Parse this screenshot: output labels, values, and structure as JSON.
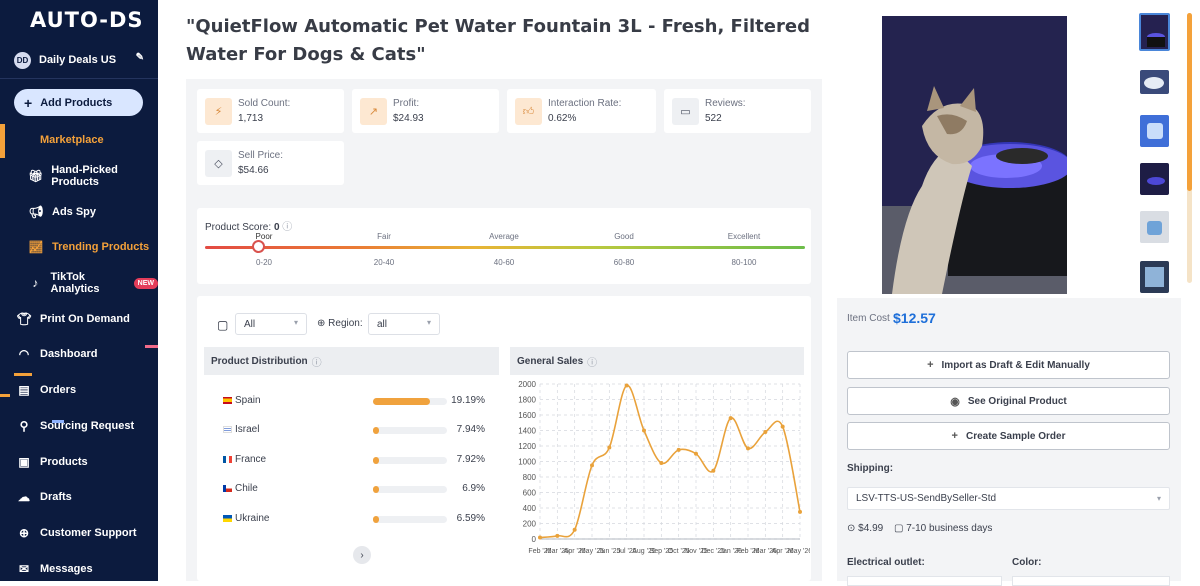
{
  "sidebar": {
    "logo": "AUTO-DS",
    "store_initials": "DD",
    "store_name": "Daily Deals US",
    "add_products": "Add Products",
    "items": [
      {
        "label": "Marketplace"
      },
      {
        "label": "Hand-Picked Products"
      },
      {
        "label": "Ads Spy"
      },
      {
        "label": "Trending Products"
      },
      {
        "label": "TikTok Analytics",
        "badge": "NEW"
      },
      {
        "label": "Print On Demand"
      },
      {
        "label": "Dashboard"
      },
      {
        "label": "Orders"
      },
      {
        "label": "Sourcing Request"
      },
      {
        "label": "Products"
      },
      {
        "label": "Drafts"
      },
      {
        "label": "Customer Support"
      },
      {
        "label": "Messages"
      }
    ],
    "accent": "#f4a13a",
    "bg": "#0c1b3e"
  },
  "product": {
    "title": "\"QuietFlow Automatic Pet Water Fountain 3L - Fresh, Filtered Water For Dogs & Cats\""
  },
  "stats": {
    "sold_count_label": "Sold Count:",
    "sold_count": "1,713",
    "profit_label": "Profit:",
    "profit": "$24.93",
    "interaction_label": "Interaction Rate:",
    "interaction": "0.62%",
    "reviews_label": "Reviews:",
    "reviews": "522",
    "sell_price_label": "Sell Price:",
    "sell_price": "$54.66"
  },
  "score": {
    "label": "Product Score:",
    "value": "0",
    "current_level": 0,
    "levels": [
      {
        "name": "Poor",
        "range": "0-20"
      },
      {
        "name": "Fair",
        "range": "20-40"
      },
      {
        "name": "Average",
        "range": "40-60"
      },
      {
        "name": "Good",
        "range": "60-80"
      },
      {
        "name": "Excellent",
        "range": "80-100"
      }
    ]
  },
  "filters": {
    "period": "All",
    "region_label": "Region:",
    "region": "all"
  },
  "distribution": {
    "header": "Product Distribution",
    "rows": [
      {
        "country": "Spain",
        "pct": "19.19%",
        "value": 19.19
      },
      {
        "country": "Israel",
        "pct": "7.94%",
        "value": 7.94
      },
      {
        "country": "France",
        "pct": "7.92%",
        "value": 7.92
      },
      {
        "country": "Chile",
        "pct": "6.9%",
        "value": 6.9
      },
      {
        "country": "Ukraine",
        "pct": "6.59%",
        "value": 6.59
      }
    ]
  },
  "chart_data": {
    "type": "line",
    "title": "General Sales",
    "xlabel": "",
    "ylabel": "",
    "ylim": [
      0,
      2000
    ],
    "yticks": [
      0,
      200,
      400,
      600,
      800,
      1000,
      1200,
      1400,
      1600,
      1800,
      2000
    ],
    "x_tick_labels": [
      "Feb '25",
      "Mar '25",
      "Apr '25",
      "May '25",
      "Jun '25",
      "Jul '25",
      "Aug '25",
      "Sep '25",
      "Oct '25",
      "Nov '25",
      "Dec '25",
      "Jan '26",
      "Feb '26",
      "Mar '26",
      "Apr '26",
      "May '26"
    ],
    "x": [
      "Feb '25",
      "Mar '25",
      "Apr '25",
      "May '25",
      "Jun '25",
      "Jul '25",
      "Aug '25",
      "Sep '25",
      "Oct '25",
      "Nov '25",
      "Dec '25",
      "Jan '26",
      "Feb '26",
      "Mar '26",
      "Apr '26",
      "May '26"
    ],
    "values": [
      20,
      40,
      120,
      950,
      1180,
      1980,
      1400,
      980,
      1150,
      1100,
      880,
      1560,
      1170,
      1380,
      1450,
      350
    ],
    "color": "#e9a23b",
    "grid": true
  },
  "purchase": {
    "item_cost_label": "Item Cost",
    "item_cost": "$12.57",
    "import_label": "Import as Draft & Edit Manually",
    "see_original_label": "See Original Product",
    "sample_label": "Create Sample Order",
    "shipping_label": "Shipping:",
    "shipping_method": "LSV-TTS-US-SendBySeller-Std",
    "shipping_price": "$4.99",
    "shipping_time": "7-10 business days",
    "outlet_label": "Electrical outlet:",
    "color_label": "Color:"
  }
}
